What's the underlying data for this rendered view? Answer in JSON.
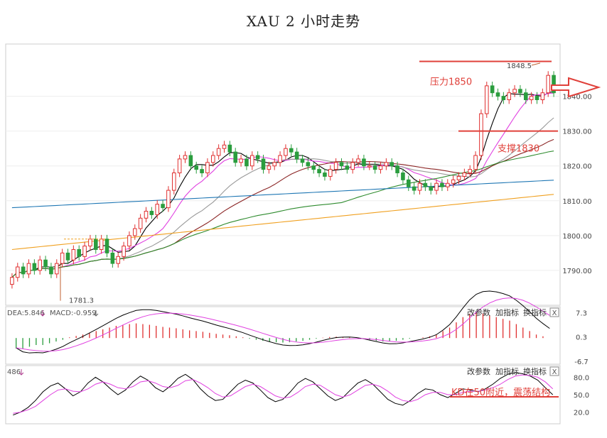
{
  "title": "XAU 2 小时走势",
  "chart_data": [
    {
      "type": "candlestick",
      "symbol": "XAU",
      "timeframe": "2 小时",
      "ylim": [
        1780,
        1855
      ],
      "yticks": [
        "1840.00",
        "1830.00",
        "1820.00",
        "1810.00",
        "1800.00",
        "1790.00"
      ],
      "ytick_values": [
        1840,
        1830,
        1820,
        1810,
        1800,
        1790
      ],
      "close": [
        1788,
        1791,
        1789,
        1792,
        1790,
        1793,
        1791,
        1789,
        1792,
        1795,
        1793,
        1796,
        1794,
        1797,
        1799,
        1796,
        1799,
        1795,
        1792,
        1794,
        1797,
        1800,
        1802,
        1805,
        1807,
        1806,
        1809,
        1808,
        1813,
        1818,
        1822,
        1823,
        1820,
        1819,
        1818,
        1821,
        1823,
        1825,
        1826,
        1824,
        1821,
        1822,
        1820,
        1823,
        1822,
        1819,
        1820,
        1821,
        1823,
        1825,
        1824,
        1822,
        1821,
        1820,
        1819,
        1818,
        1817,
        1819,
        1821,
        1820,
        1819,
        1821,
        1822,
        1820,
        1820,
        1819,
        1820,
        1821,
        1820,
        1818,
        1816,
        1814,
        1813,
        1815,
        1814,
        1813,
        1815,
        1814,
        1815,
        1816,
        1817,
        1818,
        1819,
        1823,
        1835,
        1843,
        1841,
        1840,
        1839,
        1841,
        1842,
        1841,
        1839,
        1840,
        1839,
        1841,
        1846,
        1841
      ],
      "open": [
        1786,
        1788,
        1791,
        1789,
        1792,
        1790,
        1793,
        1791,
        1789,
        1792,
        1795,
        1793,
        1796,
        1794,
        1797,
        1799,
        1796,
        1799,
        1795,
        1792,
        1794,
        1797,
        1800,
        1802,
        1805,
        1807,
        1806,
        1809,
        1808,
        1813,
        1818,
        1822,
        1823,
        1820,
        1819,
        1818,
        1821,
        1823,
        1825,
        1826,
        1824,
        1821,
        1822,
        1820,
        1823,
        1822,
        1819,
        1820,
        1821,
        1823,
        1825,
        1824,
        1822,
        1821,
        1820,
        1819,
        1818,
        1817,
        1819,
        1821,
        1820,
        1819,
        1821,
        1822,
        1820,
        1820,
        1819,
        1820,
        1821,
        1820,
        1818,
        1816,
        1814,
        1813,
        1815,
        1814,
        1813,
        1815,
        1814,
        1815,
        1816,
        1817,
        1818,
        1819,
        1823,
        1835,
        1843,
        1841,
        1840,
        1839,
        1841,
        1842,
        1841,
        1839,
        1840,
        1839,
        1841,
        1846
      ],
      "annotations": {
        "resistance_label": "压力1850",
        "resistance_value": 1850,
        "support_label": "支撑1830",
        "support_value": 1830,
        "high_label": "1848.5",
        "high_value": 1848.5,
        "low_label": "1781.3",
        "low_value": 1781.3
      }
    },
    {
      "type": "macd",
      "label_dea": "DEA:5.846",
      "label_macd": "MACD:-0.959",
      "yticks": [
        "7.3",
        "0.3",
        "-6.7"
      ],
      "ytick_values": [
        7.3,
        0.3,
        -6.7
      ],
      "histogram": [
        -3,
        -3,
        -2.5,
        -2,
        -2,
        -1.5,
        -1,
        -0.5,
        0.2,
        0.6,
        1,
        1.5,
        2,
        2.5,
        3,
        3.5,
        3.8,
        4,
        4.2,
        4,
        3.8,
        3.5,
        3.2,
        3,
        2.8,
        2.5,
        2.2,
        2,
        1.8,
        1.5,
        1.2,
        1,
        0.8,
        0.5,
        0.2,
        -0.2,
        -0.5,
        -0.8,
        -1,
        -1.2,
        -1.3,
        -1.2,
        -1,
        -0.8,
        -0.5,
        -0.2,
        0.1,
        0.3,
        0.4,
        0.3,
        0.2,
        0,
        -0.3,
        -0.6,
        -0.8,
        -1,
        -1,
        -0.8,
        -0.5,
        -0.2,
        0,
        0.2,
        0.5,
        1,
        2,
        3,
        4.5,
        6,
        7,
        7.3,
        7,
        6.5,
        6,
        5.5,
        5,
        4,
        3,
        2,
        1,
        0.5,
        0
      ]
    },
    {
      "type": "kd",
      "label": "486",
      "annotation": "KD在50附近，震荡结构",
      "reference_value": 50,
      "yticks": [
        "80.0",
        "50.0",
        "20.0"
      ],
      "ytick_values": [
        80,
        50,
        20
      ],
      "k": [
        15,
        20,
        28,
        40,
        55,
        65,
        70,
        60,
        48,
        55,
        70,
        80,
        72,
        60,
        50,
        58,
        72,
        82,
        75,
        62,
        55,
        65,
        78,
        85,
        76,
        60,
        48,
        40,
        42,
        55,
        68,
        75,
        70,
        58,
        45,
        38,
        42,
        55,
        70,
        78,
        72,
        60,
        48,
        40,
        45,
        58,
        70,
        76,
        68,
        55,
        42,
        35,
        32,
        40,
        52,
        60,
        58,
        50,
        45,
        52,
        60,
        58,
        55,
        60,
        68,
        78,
        85,
        88,
        86,
        82,
        75,
        62,
        50
      ],
      "d": [
        18,
        20,
        24,
        30,
        40,
        50,
        58,
        60,
        56,
        55,
        60,
        68,
        72,
        68,
        62,
        60,
        64,
        72,
        74,
        70,
        64,
        62,
        66,
        74,
        76,
        70,
        62,
        52,
        46,
        48,
        56,
        64,
        68,
        64,
        56,
        48,
        44,
        46,
        54,
        64,
        68,
        66,
        58,
        50,
        46,
        50,
        58,
        66,
        68,
        64,
        56,
        46,
        40,
        38,
        42,
        50,
        54,
        54,
        50,
        50,
        54,
        56,
        56,
        58,
        62,
        68,
        76,
        82,
        84,
        83,
        80,
        72,
        60
      ]
    }
  ],
  "panel_buttons": {
    "change_params": "改参数",
    "add_indicator": "加指标",
    "switch_indicator": "换指标",
    "close": "X"
  },
  "colors": {
    "up": "#e03030",
    "down": "#2a9d3e",
    "annotation": "#e0403a",
    "ma5": "#000000",
    "ma10": "#e040e0",
    "ma20": "#9a9a9a",
    "ma30": "#8b2525",
    "ma60": "#2e8b2e",
    "ma120": "#1f77b4",
    "ma250": "#f0a020"
  }
}
